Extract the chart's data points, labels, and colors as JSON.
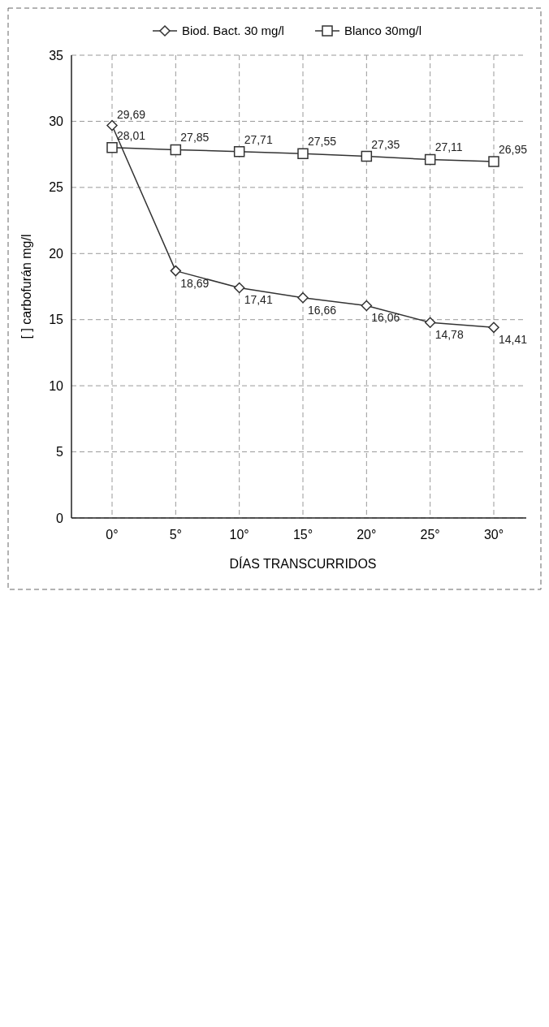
{
  "chart_data": {
    "type": "line",
    "xlabel": "DÍAS TRANSCURRIDOS",
    "ylabel": "[ ] carbofurán mg/l",
    "categories": [
      "0°",
      "5°",
      "10°",
      "15°",
      "20°",
      "25°",
      "30°"
    ],
    "series": [
      {
        "name": "Biod. Bact. 30 mg/l",
        "color": "#333333",
        "marker": "diamond",
        "values": [
          29.69,
          18.69,
          17.41,
          16.66,
          16.06,
          14.78,
          14.41
        ],
        "value_labels": [
          "29,69",
          "18,69",
          "17,41",
          "16,66",
          "16,06",
          "14,78",
          "14,41"
        ]
      },
      {
        "name": "Blanco 30mg/l",
        "color": "#333333",
        "marker": "square",
        "values": [
          28.01,
          27.85,
          27.71,
          27.55,
          27.35,
          27.11,
          26.95
        ],
        "value_labels": [
          "28,01",
          "27,85",
          "27,71",
          "27,55",
          "27,35",
          "27,11",
          "26,95"
        ]
      }
    ],
    "ylim": [
      0,
      35
    ],
    "yticks": [
      0,
      5,
      10,
      15,
      20,
      25,
      30,
      35
    ],
    "grid": true,
    "legend": "top",
    "line_style": "solid"
  }
}
